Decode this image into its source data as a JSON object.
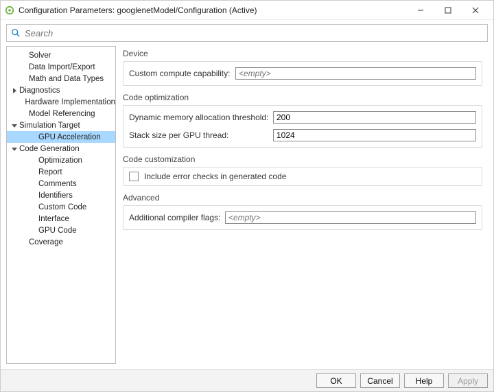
{
  "window": {
    "title": "Configuration Parameters: googlenetModel/Configuration (Active)"
  },
  "search": {
    "placeholder": "Search"
  },
  "sidebar": {
    "items": [
      {
        "label": "Solver",
        "indent": 1,
        "expander": null
      },
      {
        "label": "Data Import/Export",
        "indent": 1,
        "expander": null
      },
      {
        "label": "Math and Data Types",
        "indent": 1,
        "expander": null
      },
      {
        "label": "Diagnostics",
        "indent": 0,
        "expander": "right"
      },
      {
        "label": "Hardware Implementation",
        "indent": 1,
        "expander": null
      },
      {
        "label": "Model Referencing",
        "indent": 1,
        "expander": null
      },
      {
        "label": "Simulation Target",
        "indent": 0,
        "expander": "down"
      },
      {
        "label": "GPU Acceleration",
        "indent": 2,
        "expander": null,
        "selected": true
      },
      {
        "label": "Code Generation",
        "indent": 0,
        "expander": "down"
      },
      {
        "label": "Optimization",
        "indent": 2,
        "expander": null
      },
      {
        "label": "Report",
        "indent": 2,
        "expander": null
      },
      {
        "label": "Comments",
        "indent": 2,
        "expander": null
      },
      {
        "label": "Identifiers",
        "indent": 2,
        "expander": null
      },
      {
        "label": "Custom Code",
        "indent": 2,
        "expander": null
      },
      {
        "label": "Interface",
        "indent": 2,
        "expander": null
      },
      {
        "label": "GPU Code",
        "indent": 2,
        "expander": null
      },
      {
        "label": "Coverage",
        "indent": 1,
        "expander": null
      }
    ]
  },
  "panel": {
    "sections": {
      "device": {
        "title": "Device",
        "custom_compute_label": "Custom compute capability:",
        "custom_compute_value": "",
        "custom_compute_placeholder": "<empty>"
      },
      "code_optimization": {
        "title": "Code optimization",
        "dyn_mem_label": "Dynamic memory allocation threshold:",
        "dyn_mem_value": "200",
        "stack_label": "Stack size per GPU thread:",
        "stack_value": "1024"
      },
      "code_customization": {
        "title": "Code customization",
        "checkbox_label": "Include error checks in generated code",
        "checkbox_checked": false
      },
      "advanced": {
        "title": "Advanced",
        "compiler_flags_label": "Additional compiler flags:",
        "compiler_flags_value": "",
        "compiler_flags_placeholder": "<empty>"
      }
    }
  },
  "footer": {
    "ok": "OK",
    "cancel": "Cancel",
    "help": "Help",
    "apply": "Apply"
  },
  "colors": {
    "selection": "#a8d8ff",
    "border": "#bfbfbf",
    "section_border": "#d9d9d9",
    "footer_bg": "#f3f3f3",
    "search_icon": "#1a7fc4"
  }
}
